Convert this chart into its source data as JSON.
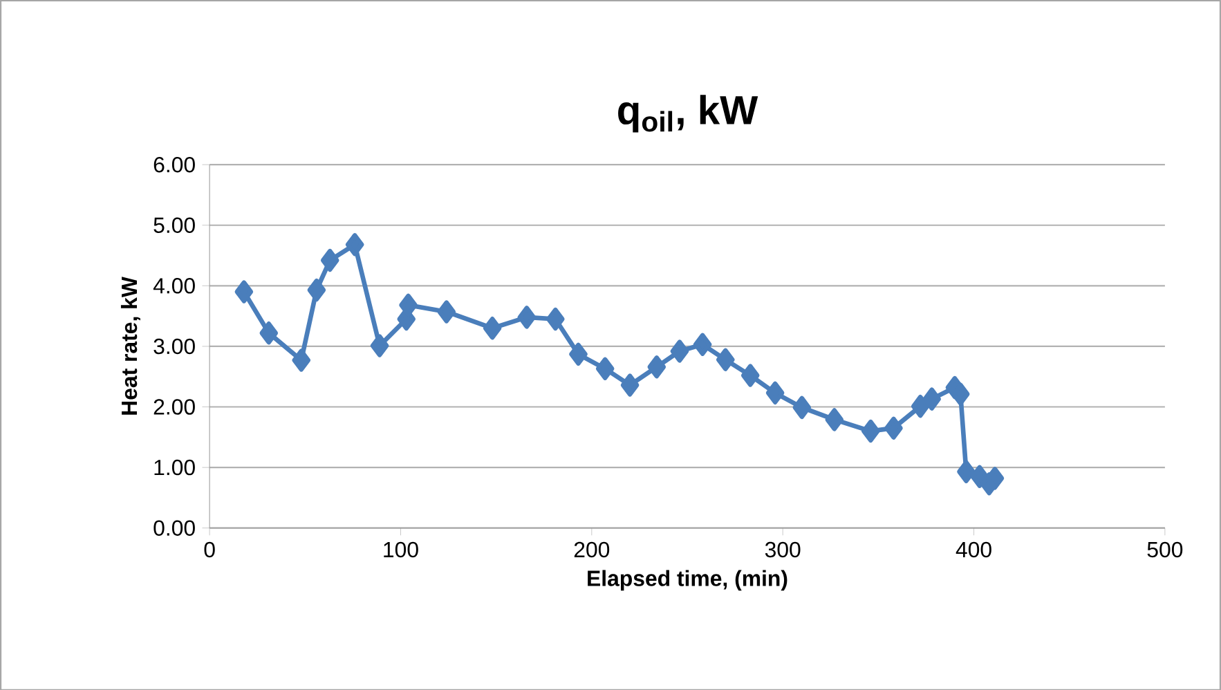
{
  "chart_data": {
    "type": "line",
    "title": "q$_{oil}$, kW",
    "xlabel": "Elapsed time, (min)",
    "ylabel": "Heat rate, kW",
    "xlim": [
      0,
      500
    ],
    "xticks": [
      0,
      100,
      200,
      300,
      400,
      500
    ],
    "ylim": [
      0,
      6
    ],
    "yticks": [
      {
        "value": 0,
        "label": "0.00"
      },
      {
        "value": 1,
        "label": "1.00"
      },
      {
        "value": 2,
        "label": "2.00"
      },
      {
        "value": 3,
        "label": "3.00"
      },
      {
        "value": 4,
        "label": "4.00"
      },
      {
        "value": 5,
        "label": "5.00"
      },
      {
        "value": 6,
        "label": "6.00"
      }
    ],
    "grid": "y",
    "marker": "diamond",
    "line_style": "solid",
    "series": [
      {
        "color": "#4a7ebb",
        "x": [
          18,
          31,
          48,
          56,
          63,
          76,
          89,
          103,
          104,
          124,
          148,
          166,
          181,
          193,
          207,
          220,
          234,
          246,
          258,
          270,
          283,
          296,
          310,
          327,
          346,
          358,
          372,
          378,
          390,
          393,
          396,
          403,
          408,
          411
        ],
        "values": [
          3.9,
          3.22,
          2.77,
          3.93,
          4.42,
          4.68,
          3.01,
          3.45,
          3.68,
          3.57,
          3.3,
          3.48,
          3.45,
          2.87,
          2.63,
          2.36,
          2.66,
          2.92,
          3.03,
          2.78,
          2.52,
          2.23,
          1.99,
          1.79,
          1.6,
          1.65,
          2.01,
          2.13,
          2.32,
          2.21,
          0.93,
          0.85,
          0.73,
          0.82
        ]
      }
    ]
  }
}
